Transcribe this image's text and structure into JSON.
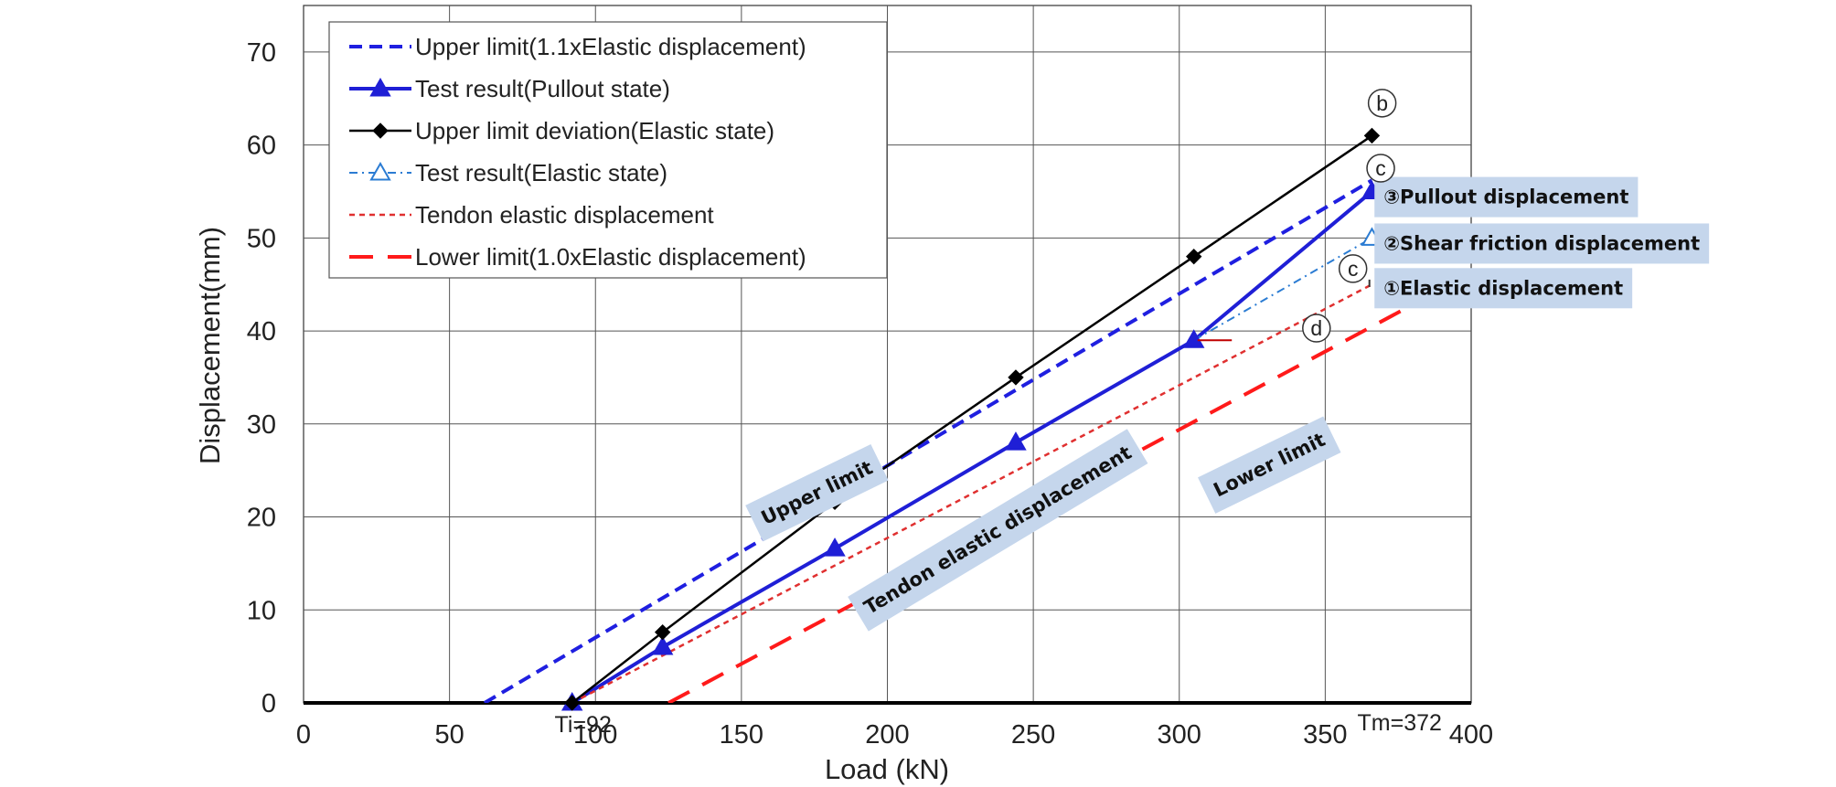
{
  "chart_data": {
    "type": "line",
    "title": "",
    "xlabel": "Load (kN)",
    "ylabel": "Displacement(mm)",
    "xlim": [
      0,
      400
    ],
    "ylim": [
      0,
      75
    ],
    "x_ticks": [
      "0",
      "50",
      "100",
      "150",
      "200",
      "250",
      "300",
      "350",
      "400"
    ],
    "y_ticks": [
      "0",
      "10",
      "20",
      "30",
      "40",
      "50",
      "60",
      "70"
    ],
    "grid": true,
    "legend_position": "top-left",
    "series": [
      {
        "name": "Upper limit(1.1xElastic displacement)",
        "style": "dashed-thick",
        "color": "#1f1fe0",
        "marker": "none",
        "x": [
          62,
          366
        ],
        "y": [
          0,
          56.2
        ]
      },
      {
        "name": "Test result(Pullout state)",
        "style": "solid-thick",
        "color": "#1f1fd6",
        "marker": "triangle-filled",
        "x": [
          92,
          123,
          182,
          244,
          305,
          366
        ],
        "y": [
          0,
          6,
          16.6,
          28,
          39,
          55
        ]
      },
      {
        "name": "Upper limit deviation(Elastic state)",
        "style": "solid",
        "color": "#000000",
        "marker": "diamond",
        "x": [
          92,
          123,
          182,
          244,
          305,
          366
        ],
        "y": [
          0,
          7.6,
          21.6,
          35,
          48,
          61
        ]
      },
      {
        "name": "Test result(Elastic state)",
        "style": "dashdot",
        "color": "#2b7cd3",
        "marker": "triangle-open",
        "x": [
          305,
          366
        ],
        "y": [
          39,
          50
        ]
      },
      {
        "name": "Tendon elastic displacement",
        "style": "dotted",
        "color": "#e03030",
        "marker": "none",
        "x": [
          92,
          366
        ],
        "y": [
          0,
          45
        ]
      },
      {
        "name": "Lower limit(1.0xElastic displacement)",
        "style": "longdash",
        "color": "#ff1a1a",
        "marker": "none",
        "x": [
          125,
          384
        ],
        "y": [
          0,
          43.5
        ]
      }
    ],
    "annotations": [
      {
        "text": "Upper limit",
        "x": 176,
        "y": 22.5,
        "rotate": -26
      },
      {
        "text": "Tendon elastic displacement",
        "x": 238,
        "y": 18.5,
        "rotate": -31
      },
      {
        "text": "Lower limit",
        "x": 331,
        "y": 25.5,
        "rotate": -26
      },
      {
        "text": "③Pullout displacement",
        "x": 370,
        "y": 54.3,
        "rotate": 0
      },
      {
        "text": "②Shear friction displacement",
        "x": 370,
        "y": 49.3,
        "rotate": 0
      },
      {
        "text": "①Elastic displacement",
        "x": 370,
        "y": 44.5,
        "rotate": 0
      },
      {
        "text": "Ti=92",
        "x": 86,
        "y": -2.5,
        "rotate": 0
      },
      {
        "text": "Tm=372",
        "x": 361,
        "y": -2.3,
        "rotate": 0
      }
    ],
    "point_labels": [
      {
        "text": "b",
        "x": 369.5,
        "y": 64.5
      },
      {
        "text": "c",
        "x": 369,
        "y": 57.5
      },
      {
        "text": "c",
        "x": 359.5,
        "y": 46.7
      },
      {
        "text": "d",
        "x": 347,
        "y": 40.3
      }
    ]
  }
}
